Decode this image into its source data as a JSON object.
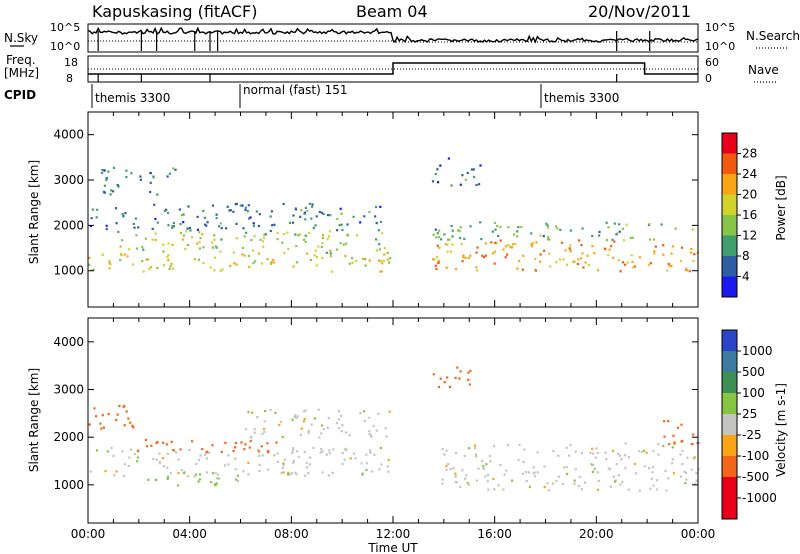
{
  "header": {
    "radar": "Kapuskasing (fitACF)",
    "beam": "Beam 04",
    "date": "20/Nov/2011"
  },
  "noise_panel": {
    "left_label": "N.Sky",
    "left_ticks": [
      "10^5",
      "10^0"
    ],
    "right_ticks": [
      "10^5",
      "10^0"
    ],
    "right_label": "N.Search"
  },
  "freq_panel": {
    "left_label_1": "Freq.",
    "left_label_2": "[MHz]",
    "left_ticks": [
      "18",
      "8"
    ],
    "right_ticks": [
      "60",
      "0"
    ],
    "right_label": "Nave"
  },
  "cpid": {
    "label": "CPID",
    "segments": [
      {
        "text": "themis 3300",
        "start_hour": 0.0
      },
      {
        "text": "normal (fast) 151",
        "start_hour": 6.0
      },
      {
        "text": "themis 3300",
        "start_hour": 18.0
      }
    ]
  },
  "axes": {
    "ylabel": "Slant Range [km]",
    "yticks": [
      "4000",
      "3000",
      "2000",
      "1000"
    ],
    "xticks": [
      "00:00",
      "04:00",
      "08:00",
      "12:00",
      "16:00",
      "20:00",
      "00:00"
    ],
    "xlabel": "Time UT"
  },
  "colorbars": {
    "power": {
      "label": "Power [dB]",
      "ticks": [
        "28",
        "24",
        "20",
        "16",
        "12",
        "8",
        "4"
      ],
      "colors": [
        "#e8001a",
        "#f25a12",
        "#f9a516",
        "#cfd32a",
        "#86c548",
        "#3e9e6e",
        "#2d5ea2",
        "#1a1aee"
      ]
    },
    "velocity": {
      "label": "Velocity [m s-1]",
      "ticks": [
        "1000",
        "500",
        "100",
        "25",
        "-25",
        "-100",
        "-500",
        "-1000"
      ],
      "colors": [
        "#2b44c8",
        "#3d7ba0",
        "#3e8f53",
        "#86c540",
        "#c4c4c0",
        "#f9a516",
        "#f3661a",
        "#e8001a",
        "#e8001a"
      ]
    }
  },
  "chart_data": [
    {
      "type": "heatmap",
      "title": "",
      "xlabel": "",
      "ylabel": "Slant Range [km]",
      "xlim": [
        0,
        24
      ],
      "ylim": [
        200,
        4500
      ],
      "colorbar": "Power [dB]",
      "scatter_bands": [
        {
          "t0": 0.0,
          "t1": 12.0,
          "r0": 1000,
          "r1": 1400,
          "value": 18
        },
        {
          "t0": 1.0,
          "t1": 12.0,
          "r0": 1400,
          "r1": 1900,
          "value": 16
        },
        {
          "t0": 0.0,
          "t1": 11.5,
          "r0": 1900,
          "r1": 2500,
          "value": 8
        },
        {
          "t0": 0.5,
          "t1": 3.5,
          "r0": 2700,
          "r1": 3300,
          "value": 8
        },
        {
          "t0": 13.5,
          "t1": 24.0,
          "r0": 1000,
          "r1": 1700,
          "value": 22
        },
        {
          "t0": 13.5,
          "t1": 24.0,
          "r0": 1700,
          "r1": 2100,
          "value": 12
        },
        {
          "t0": 13.5,
          "t1": 15.5,
          "r0": 2900,
          "r1": 3500,
          "value": 8
        }
      ]
    },
    {
      "type": "heatmap",
      "title": "",
      "xlabel": "Time UT",
      "ylabel": "Slant Range [km]",
      "xlim": [
        0,
        24
      ],
      "ylim": [
        200,
        4500
      ],
      "colorbar": "Velocity [m s-1]",
      "scatter_bands": [
        {
          "t0": 0.0,
          "t1": 12.0,
          "r0": 1200,
          "r1": 1800,
          "value": 0
        },
        {
          "t0": 1.5,
          "t1": 7.5,
          "r0": 1700,
          "r1": 2000,
          "value": -200
        },
        {
          "t0": 0.0,
          "t1": 2.0,
          "r0": 2200,
          "r1": 2700,
          "value": -200
        },
        {
          "t0": 2.0,
          "t1": 6.0,
          "r0": 1000,
          "r1": 1300,
          "value": 50
        },
        {
          "t0": 6.0,
          "t1": 12.0,
          "r0": 2000,
          "r1": 2600,
          "value": 0
        },
        {
          "t0": 13.5,
          "t1": 24.0,
          "r0": 900,
          "r1": 1900,
          "value": 0
        },
        {
          "t0": 13.5,
          "t1": 15.0,
          "r0": 3000,
          "r1": 3500,
          "value": -300
        },
        {
          "t0": 22.5,
          "t1": 24.0,
          "r0": 1800,
          "r1": 2400,
          "value": -150
        }
      ]
    }
  ]
}
